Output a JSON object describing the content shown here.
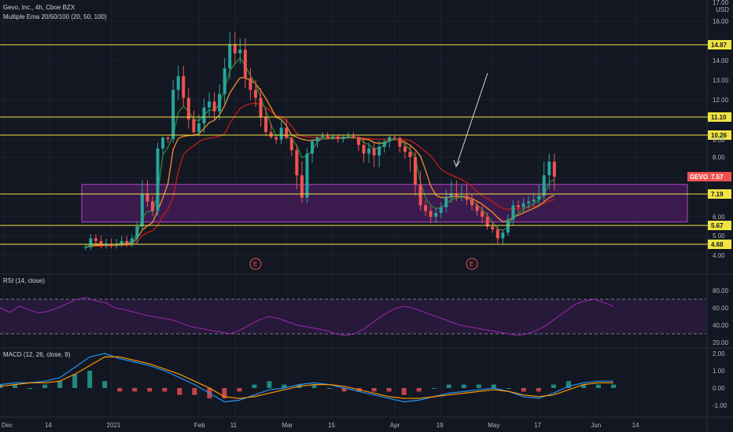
{
  "header": {
    "title": "Gevo, Inc., 4h, Cboe BZX",
    "ema_label": "Multiple Ema 20/50/100 (20, 50, 100)",
    "rsi_label": "RSI (14, close)",
    "macd_label": "MACD (12, 26, close, 9)"
  },
  "colors": {
    "background": "#131722",
    "up": "#26a69a",
    "down": "#ef5350",
    "ema20": "#2e7d32",
    "ema50": "#e8872a",
    "ema100": "#b71c1c",
    "hline": "#f0e442",
    "zone_fill": "#4a1e5e",
    "zone_border": "#b04cc8",
    "rsi": "#9c27b0",
    "rsi_band": "#2c1a3d",
    "macd": "#2196f3",
    "signal": "#ff9800",
    "ticker_label": "#ef5350"
  },
  "chart_data": {
    "type": "candlestick",
    "price_scale": {
      "unit": "USD",
      "ticks": [
        "17.00",
        "16.00",
        "14.00",
        "13.00",
        "12.00",
        "9.00",
        "8.00",
        "6.00",
        "5.00",
        "4.00"
      ]
    },
    "horizontal_levels": [
      {
        "value": 14.87,
        "label": "14.87"
      },
      {
        "value": 11.1,
        "label": "11.10"
      },
      {
        "value": 10.26,
        "label": "10.26"
      },
      {
        "value": 7.19,
        "label": "7.19"
      },
      {
        "value": 5.67,
        "label": "5.67"
      },
      {
        "value": 4.68,
        "label": "4.68"
      }
    ],
    "last_price": {
      "ticker": "GEVO",
      "value": 7.57,
      "label": "7.57"
    },
    "zone": {
      "from": 5.8,
      "to": 7.4
    },
    "earnings_markers": [
      {
        "label": "E",
        "x": 49
      },
      {
        "label": "E",
        "x": 91
      }
    ],
    "x_axis": {
      "labels": [
        {
          "text": "Dec",
          "x": 0
        },
        {
          "text": "14",
          "x": 9
        },
        {
          "text": "2021",
          "x": 21
        },
        {
          "text": "Feb",
          "x": 38
        },
        {
          "text": "11",
          "x": 45
        },
        {
          "text": "Mar",
          "x": 55
        },
        {
          "text": "15",
          "x": 64
        },
        {
          "text": "Apr",
          "x": 76
        },
        {
          "text": "19",
          "x": 85
        },
        {
          "text": "May",
          "x": 95
        },
        {
          "text": "17",
          "x": 104
        },
        {
          "text": "Jun",
          "x": 115
        },
        {
          "text": "14",
          "x": 123
        }
      ]
    },
    "price_series": [
      {
        "x": 16,
        "close": 4.5
      },
      {
        "x": 17,
        "close": 4.9
      },
      {
        "x": 18,
        "close": 4.8
      },
      {
        "x": 19,
        "close": 4.6
      },
      {
        "x": 20,
        "close": 4.7
      },
      {
        "x": 21,
        "close": 4.6
      },
      {
        "x": 22,
        "close": 4.7
      },
      {
        "x": 23,
        "close": 4.8
      },
      {
        "x": 24,
        "close": 4.7
      },
      {
        "x": 25,
        "close": 4.9
      },
      {
        "x": 26,
        "close": 5.6
      },
      {
        "x": 27,
        "close": 7.2
      },
      {
        "x": 28,
        "close": 6.8
      },
      {
        "x": 29,
        "close": 6.3
      },
      {
        "x": 30,
        "close": 8.5
      },
      {
        "x": 31,
        "close": 9.6
      },
      {
        "x": 32,
        "close": 9.2
      },
      {
        "x": 33,
        "close": 12.5
      },
      {
        "x": 34,
        "close": 13.2
      },
      {
        "x": 35,
        "close": 12.1
      },
      {
        "x": 36,
        "close": 11.0
      },
      {
        "x": 37,
        "close": 10.4
      },
      {
        "x": 38,
        "close": 10.8
      },
      {
        "x": 39,
        "close": 11.6
      },
      {
        "x": 40,
        "close": 11.9
      },
      {
        "x": 41,
        "close": 11.4
      },
      {
        "x": 42,
        "close": 12.3
      },
      {
        "x": 43,
        "close": 13.6
      },
      {
        "x": 44,
        "close": 14.9
      },
      {
        "x": 45,
        "close": 14.4
      },
      {
        "x": 46,
        "close": 14.6
      },
      {
        "x": 47,
        "close": 13.1
      },
      {
        "x": 48,
        "close": 12.5
      },
      {
        "x": 49,
        "close": 12.1
      },
      {
        "x": 50,
        "close": 11.1
      },
      {
        "x": 51,
        "close": 10.4
      },
      {
        "x": 52,
        "close": 9.7
      },
      {
        "x": 53,
        "close": 9.1
      },
      {
        "x": 54,
        "close": 10.6
      },
      {
        "x": 55,
        "close": 9.5
      },
      {
        "x": 56,
        "close": 8.4
      },
      {
        "x": 57,
        "close": 7.6
      },
      {
        "x": 58,
        "close": 7.0
      },
      {
        "x": 59,
        "close": 8.2
      },
      {
        "x": 60,
        "close": 8.9
      },
      {
        "x": 61,
        "close": 9.6
      },
      {
        "x": 62,
        "close": 10.0
      },
      {
        "x": 63,
        "close": 9.5
      },
      {
        "x": 64,
        "close": 9.9
      },
      {
        "x": 65,
        "close": 9.2
      },
      {
        "x": 66,
        "close": 9.8
      },
      {
        "x": 67,
        "close": 10.0
      },
      {
        "x": 68,
        "close": 9.6
      },
      {
        "x": 69,
        "close": 8.7
      },
      {
        "x": 70,
        "close": 8.2
      },
      {
        "x": 71,
        "close": 8.5
      },
      {
        "x": 72,
        "close": 8.1
      },
      {
        "x": 73,
        "close": 8.6
      },
      {
        "x": 74,
        "close": 8.9
      },
      {
        "x": 75,
        "close": 9.7
      },
      {
        "x": 76,
        "close": 9.5
      },
      {
        "x": 77,
        "close": 8.6
      },
      {
        "x": 78,
        "close": 8.3
      },
      {
        "x": 79,
        "close": 8.0
      },
      {
        "x": 80,
        "close": 7.4
      },
      {
        "x": 81,
        "close": 6.6
      },
      {
        "x": 82,
        "close": 6.3
      },
      {
        "x": 83,
        "close": 6.0
      },
      {
        "x": 84,
        "close": 6.2
      },
      {
        "x": 85,
        "close": 6.5
      },
      {
        "x": 86,
        "close": 7.0
      },
      {
        "x": 87,
        "close": 7.2
      },
      {
        "x": 88,
        "close": 7.1
      },
      {
        "x": 89,
        "close": 7.1
      },
      {
        "x": 90,
        "close": 6.9
      },
      {
        "x": 91,
        "close": 6.6
      },
      {
        "x": 92,
        "close": 6.3
      },
      {
        "x": 93,
        "close": 6.0
      },
      {
        "x": 94,
        "close": 5.6
      },
      {
        "x": 95,
        "close": 5.4
      },
      {
        "x": 96,
        "close": 4.9
      },
      {
        "x": 97,
        "close": 5.2
      },
      {
        "x": 98,
        "close": 5.9
      },
      {
        "x": 99,
        "close": 6.6
      },
      {
        "x": 100,
        "close": 6.5
      },
      {
        "x": 101,
        "close": 6.7
      },
      {
        "x": 102,
        "close": 6.8
      },
      {
        "x": 103,
        "close": 6.9
      },
      {
        "x": 104,
        "close": 7.1
      },
      {
        "x": 105,
        "close": 7.6
      },
      {
        "x": 106,
        "close": 7.9
      },
      {
        "x": 107,
        "close": 7.57
      }
    ],
    "rsi": {
      "levels": [
        70,
        30
      ],
      "ticks": [
        "80.00",
        "60.00",
        "40.00",
        "20.00"
      ],
      "values": [
        60,
        55,
        62,
        58,
        54,
        56,
        60,
        65,
        70,
        72,
        68,
        66,
        60,
        58,
        55,
        52,
        50,
        48,
        46,
        42,
        38,
        36,
        34,
        32,
        30,
        34,
        40,
        46,
        50,
        48,
        44,
        40,
        38,
        36,
        34,
        30,
        28,
        30,
        36,
        44,
        52,
        58,
        62,
        60,
        56,
        52,
        48,
        44,
        40,
        38,
        36,
        34,
        32,
        30,
        28,
        30,
        34,
        40,
        48,
        56,
        64,
        68,
        70,
        66,
        62
      ]
    },
    "macd": {
      "ticks": [
        "2.00",
        "1.00",
        "0.00",
        "-1.00"
      ],
      "macd_values": [
        0.2,
        0.3,
        0.3,
        0.4,
        0.6,
        1.2,
        1.8,
        2.0,
        1.7,
        1.5,
        1.3,
        1.0,
        0.6,
        0.2,
        -0.3,
        -0.8,
        -0.7,
        -0.4,
        -0.1,
        0.0,
        0.2,
        0.3,
        0.2,
        0.0,
        -0.2,
        -0.4,
        -0.6,
        -0.8,
        -0.7,
        -0.5,
        -0.3,
        -0.2,
        -0.1,
        0.0,
        -0.2,
        -0.5,
        -0.6,
        -0.3,
        0.1,
        0.3,
        0.4,
        0.4
      ],
      "signal_values": [
        0.1,
        0.2,
        0.3,
        0.3,
        0.4,
        0.8,
        1.3,
        1.8,
        1.8,
        1.6,
        1.4,
        1.1,
        0.8,
        0.4,
        0.0,
        -0.5,
        -0.6,
        -0.5,
        -0.3,
        -0.1,
        0.1,
        0.2,
        0.2,
        0.1,
        -0.1,
        -0.3,
        -0.5,
        -0.6,
        -0.6,
        -0.5,
        -0.4,
        -0.3,
        -0.2,
        -0.1,
        -0.2,
        -0.4,
        -0.5,
        -0.4,
        -0.1,
        0.2,
        0.3,
        0.3
      ]
    }
  }
}
